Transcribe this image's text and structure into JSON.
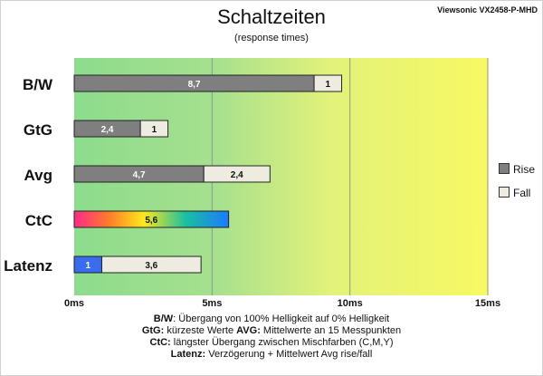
{
  "chart_data": {
    "type": "bar",
    "orientation": "horizontal",
    "stacked": true,
    "title": "Schaltzeiten",
    "subtitle": "(response times)",
    "model": "Viewsonic VX2458-P-MHD",
    "xlim": [
      0,
      15
    ],
    "xticks": [
      "0ms",
      "5ms",
      "10ms",
      "15ms"
    ],
    "tick_values": [
      0,
      5,
      10,
      15
    ],
    "categories": [
      "B/W",
      "GtG",
      "Avg",
      "CtC",
      "Latenz"
    ],
    "series": [
      {
        "name": "Rise",
        "values": [
          8.7,
          2.4,
          4.7,
          null,
          null
        ]
      },
      {
        "name": "Fall",
        "values": [
          1,
          1,
          2.4,
          null,
          3.6
        ]
      }
    ],
    "extra_bars": [
      {
        "category": "CtC",
        "value": 5.6,
        "label": "5,6",
        "style": "rainbow"
      },
      {
        "category": "Latenz",
        "value": 1,
        "label": "1",
        "style": "blue"
      }
    ],
    "value_labels": {
      "B/W": [
        "8,7",
        "1"
      ],
      "GtG": [
        "2,4",
        "1"
      ],
      "Avg": [
        "4,7",
        "2,4"
      ],
      "Latenz_fall": "3,6"
    },
    "legend": [
      "Rise",
      "Fall"
    ],
    "legend_position": "right",
    "colors": {
      "rise": "#7f7f7f",
      "fall": "#eeece0",
      "latency": "#3a6cf0",
      "gridline": "#8a9a8a"
    },
    "notes": {
      "bw_key": "B/W",
      "bw_text": ":  Übergang von 100% Helligkeit auf 0% Helligkeit",
      "gtg_key": "GtG:",
      "gtg_text": " kürzeste  Werte        ",
      "avg_key": "AVG:",
      "avg_text": " Mittelwerte  an 15 Messpunkten",
      "ctc_key": "CtC:",
      "ctc_text": " längster Übergang  zwischen Mischfarben  (C,M,Y)",
      "lat_key": "Latenz:",
      "lat_text": " Verzögerung  + Mittelwert  Avg rise/fall"
    }
  }
}
